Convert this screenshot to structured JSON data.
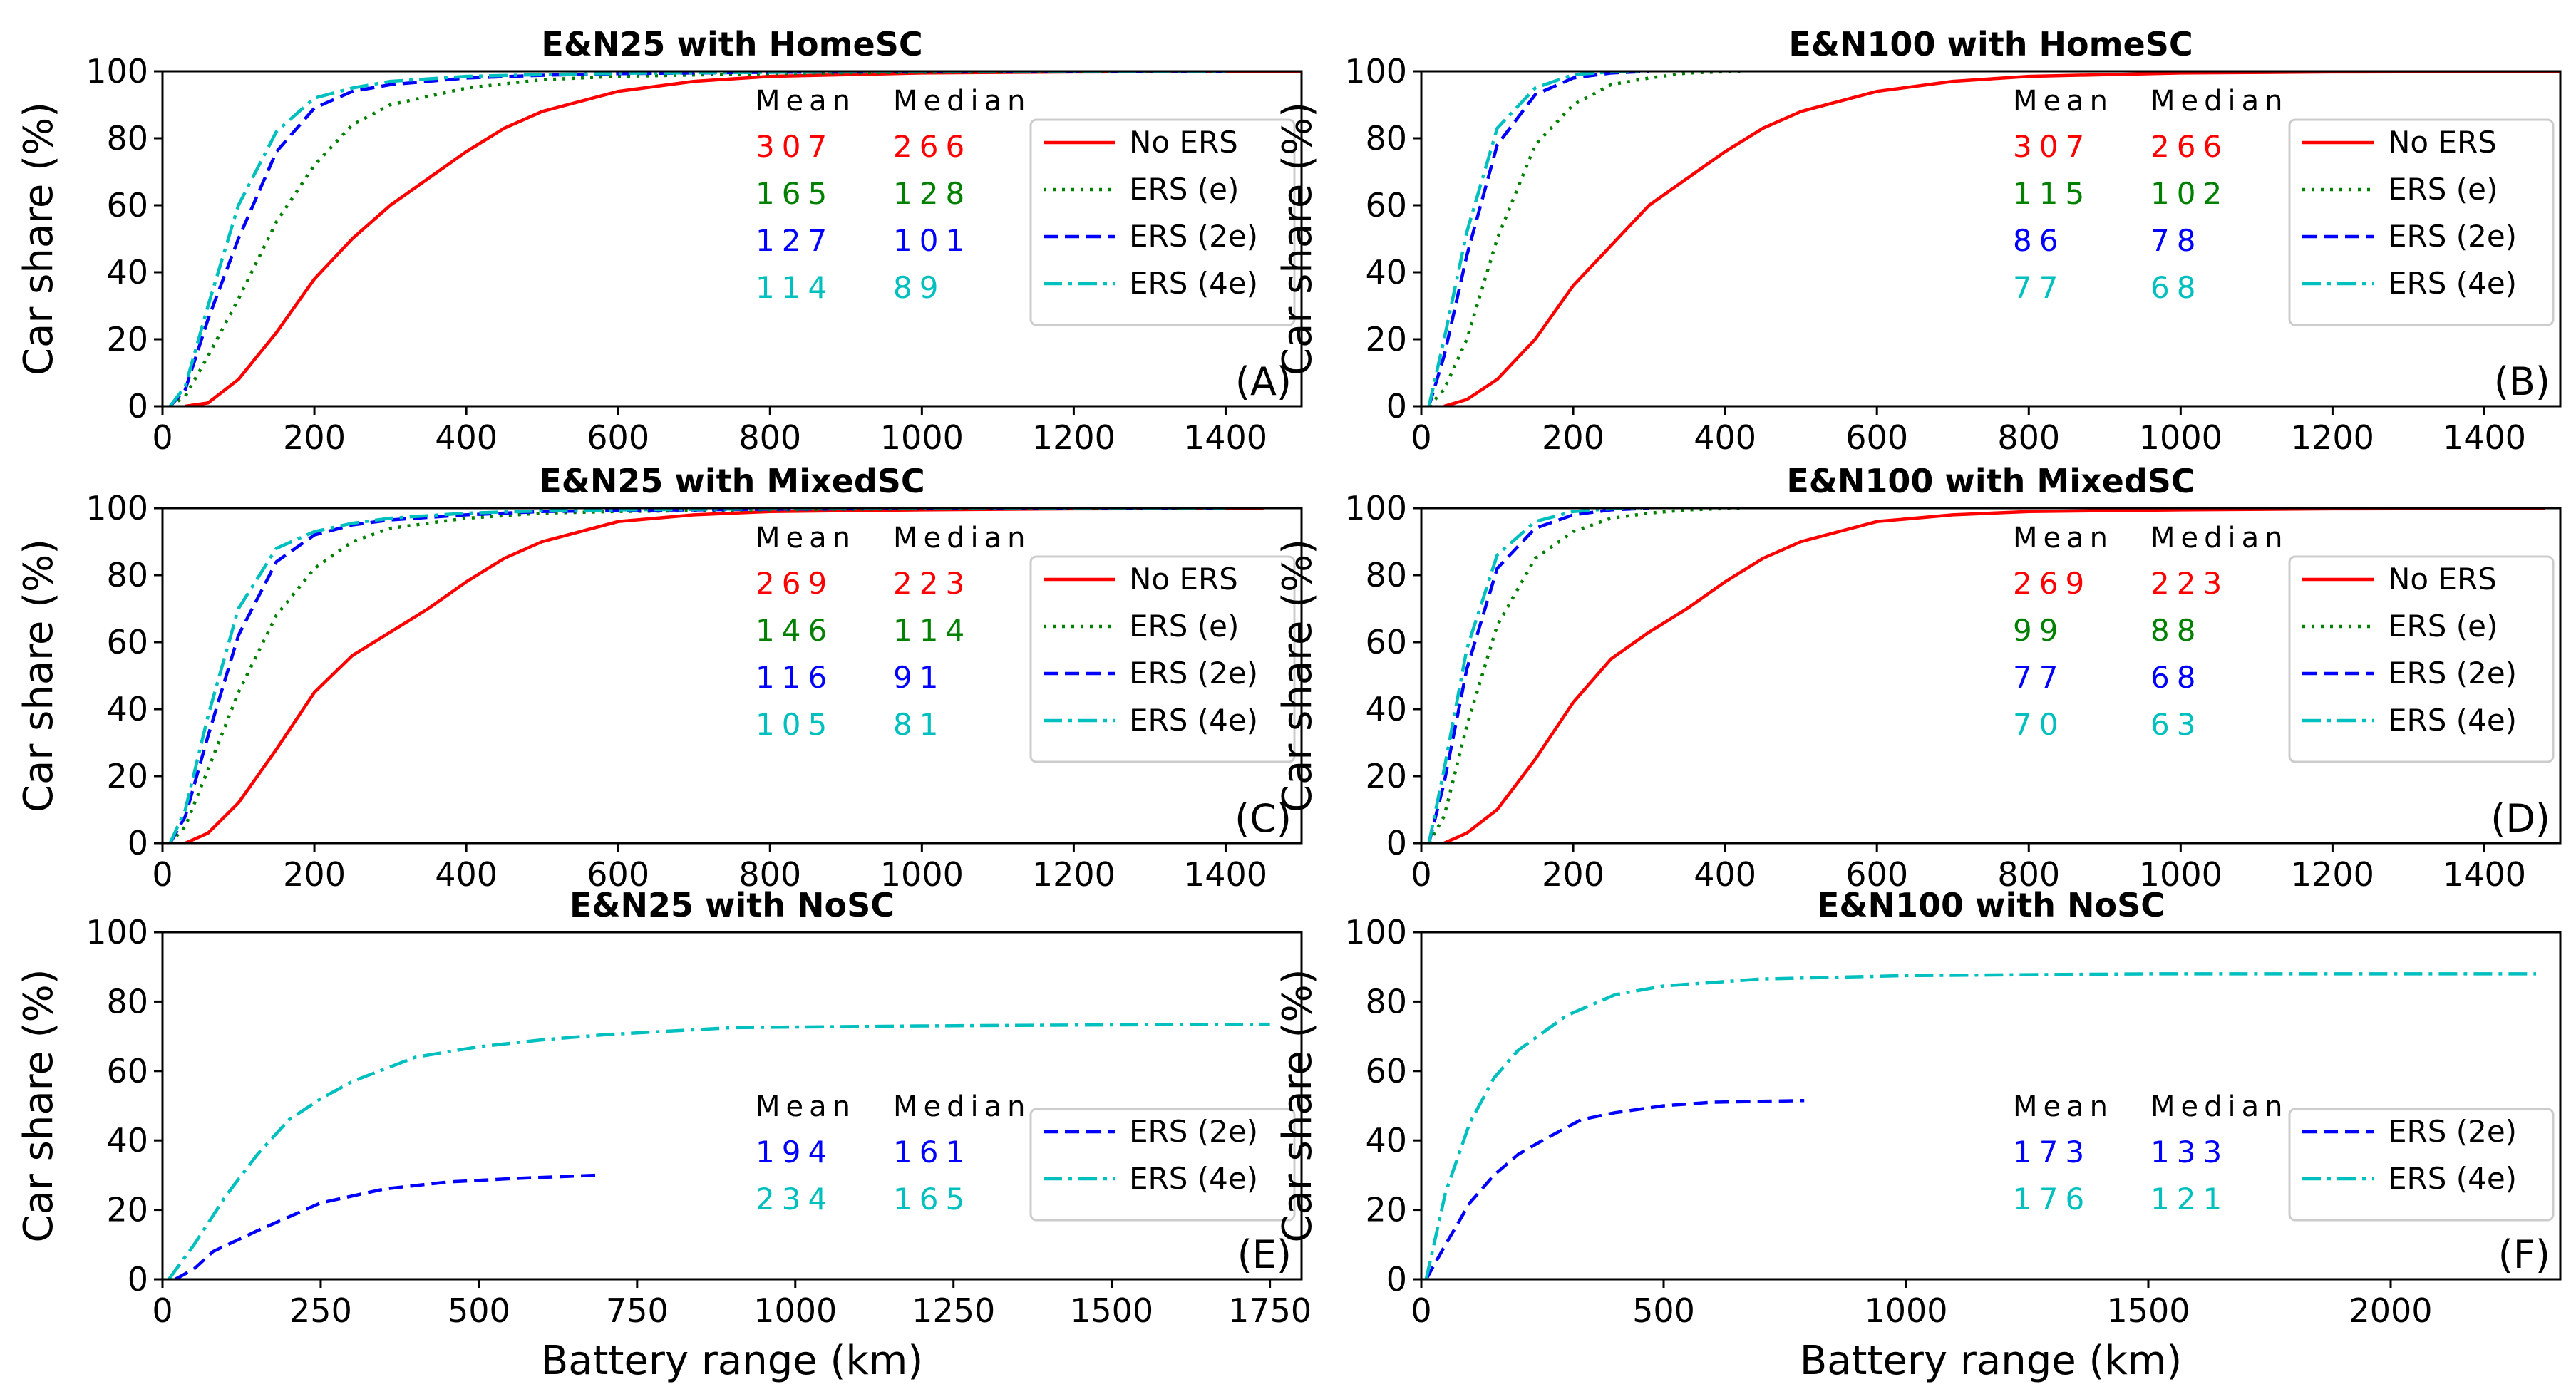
{
  "colors": {
    "no_ers": "#ff0000",
    "ers_e": "#008000",
    "ers_2e": "#0000ff",
    "ers_4e": "#00bfbf",
    "axis": "#000000"
  },
  "shared": {
    "ylabel": "Car share (%)",
    "xlabel": "Battery range (km)",
    "stats_headers": [
      "Mean",
      "Median"
    ]
  },
  "chart_data": [
    {
      "id": "A",
      "type": "line",
      "title": "E&N25 with HomeSC",
      "corner_label": "(A)",
      "xlim": [
        0,
        1500
      ],
      "ylim": [
        0,
        100
      ],
      "xticks": [
        0,
        200,
        400,
        600,
        800,
        1000,
        1200,
        1400
      ],
      "yticks": [
        0,
        20,
        40,
        60,
        80,
        100
      ],
      "legend": [
        "No ERS",
        "ERS (e)",
        "ERS (2e)",
        "ERS (4e)"
      ],
      "stats": [
        {
          "series": "No ERS",
          "mean": "307",
          "median": "266"
        },
        {
          "series": "ERS (e)",
          "mean": "165",
          "median": "128"
        },
        {
          "series": "ERS (2e)",
          "mean": "127",
          "median": "101"
        },
        {
          "series": "ERS (4e)",
          "mean": "114",
          "median": "89"
        }
      ],
      "series": [
        {
          "name": "No ERS",
          "style": "solid",
          "x": [
            30,
            60,
            100,
            150,
            200,
            250,
            300,
            350,
            400,
            450,
            500,
            600,
            700,
            800,
            1000,
            1200,
            1400,
            1500
          ],
          "y": [
            0,
            1,
            8,
            22,
            38,
            50,
            60,
            68,
            76,
            83,
            88,
            94,
            97,
            98.5,
            99.5,
            99.8,
            99.9,
            100
          ]
        },
        {
          "name": "ERS (e)",
          "style": "dotted",
          "x": [
            10,
            30,
            60,
            100,
            150,
            200,
            250,
            300,
            400,
            500,
            600,
            800,
            1000,
            1200,
            1400
          ],
          "y": [
            0,
            3,
            15,
            32,
            55,
            72,
            84,
            90,
            95,
            97.5,
            98.5,
            99.3,
            99.7,
            99.9,
            100
          ]
        },
        {
          "name": "ERS (2e)",
          "style": "dashed",
          "x": [
            10,
            30,
            60,
            100,
            150,
            200,
            250,
            300,
            400,
            500,
            600,
            800,
            1000,
            1200,
            1400
          ],
          "y": [
            0,
            5,
            26,
            50,
            76,
            89,
            94,
            96,
            98,
            98.8,
            99.3,
            99.7,
            99.9,
            100,
            100
          ]
        },
        {
          "name": "ERS (4e)",
          "style": "dashdot",
          "x": [
            10,
            30,
            60,
            100,
            150,
            200,
            250,
            300,
            400,
            500,
            600,
            800,
            1000,
            1200,
            1400
          ],
          "y": [
            0,
            6,
            30,
            60,
            82,
            92,
            95,
            97,
            98.5,
            99,
            99.4,
            99.7,
            99.9,
            100,
            100
          ]
        }
      ]
    },
    {
      "id": "B",
      "type": "line",
      "title": "E&N100 with HomeSC",
      "corner_label": "(B)",
      "xlim": [
        0,
        1500
      ],
      "ylim": [
        0,
        100
      ],
      "xticks": [
        0,
        200,
        400,
        600,
        800,
        1000,
        1200,
        1400
      ],
      "yticks": [
        0,
        20,
        40,
        60,
        80,
        100
      ],
      "legend": [
        "No ERS",
        "ERS (e)",
        "ERS (2e)",
        "ERS (4e)"
      ],
      "stats": [
        {
          "series": "No ERS",
          "mean": "307",
          "median": "266"
        },
        {
          "series": "ERS (e)",
          "mean": "115",
          "median": "102"
        },
        {
          "series": "ERS (2e)",
          "mean": "86",
          "median": "78"
        },
        {
          "series": "ERS (4e)",
          "mean": "77",
          "median": "68"
        }
      ],
      "series": [
        {
          "name": "No ERS",
          "style": "solid",
          "x": [
            30,
            60,
            100,
            150,
            200,
            250,
            300,
            350,
            400,
            450,
            500,
            600,
            700,
            800,
            1000,
            1200,
            1400,
            1500
          ],
          "y": [
            0,
            2,
            8,
            20,
            36,
            48,
            60,
            68,
            76,
            83,
            88,
            94,
            97,
            98.5,
            99.5,
            99.8,
            99.9,
            100
          ]
        },
        {
          "name": "ERS (e)",
          "style": "dotted",
          "x": [
            10,
            30,
            60,
            100,
            150,
            200,
            250,
            300,
            350,
            420
          ],
          "y": [
            0,
            5,
            20,
            50,
            78,
            90,
            96,
            98,
            99.5,
            100
          ]
        },
        {
          "name": "ERS (2e)",
          "style": "dashed",
          "x": [
            10,
            30,
            60,
            100,
            150,
            200,
            250,
            300
          ],
          "y": [
            0,
            15,
            45,
            78,
            93,
            98,
            99.5,
            100
          ]
        },
        {
          "name": "ERS (4e)",
          "style": "dashdot",
          "x": [
            10,
            30,
            60,
            100,
            150,
            200,
            250,
            290
          ],
          "y": [
            0,
            20,
            52,
            83,
            95,
            99,
            99.8,
            100
          ]
        }
      ]
    },
    {
      "id": "C",
      "type": "line",
      "title": "E&N25 with MixedSC",
      "corner_label": "(C)",
      "xlim": [
        0,
        1500
      ],
      "ylim": [
        0,
        100
      ],
      "xticks": [
        0,
        200,
        400,
        600,
        800,
        1000,
        1200,
        1400
      ],
      "yticks": [
        0,
        20,
        40,
        60,
        80,
        100
      ],
      "legend": [
        "No ERS",
        "ERS (e)",
        "ERS (2e)",
        "ERS (4e)"
      ],
      "stats": [
        {
          "series": "No ERS",
          "mean": "269",
          "median": "223"
        },
        {
          "series": "ERS (e)",
          "mean": "146",
          "median": "114"
        },
        {
          "series": "ERS (2e)",
          "mean": "116",
          "median": "91"
        },
        {
          "series": "ERS (4e)",
          "mean": "105",
          "median": "81"
        }
      ],
      "series": [
        {
          "name": "No ERS",
          "style": "solid",
          "x": [
            30,
            60,
            100,
            150,
            200,
            250,
            300,
            350,
            400,
            450,
            500,
            600,
            700,
            800,
            1000,
            1200,
            1400,
            1450
          ],
          "y": [
            0,
            3,
            12,
            28,
            45,
            56,
            63,
            70,
            78,
            85,
            90,
            96,
            98,
            99,
            99.5,
            99.8,
            99.9,
            100
          ]
        },
        {
          "name": "ERS (e)",
          "style": "dotted",
          "x": [
            10,
            30,
            60,
            100,
            150,
            200,
            250,
            300,
            400,
            500,
            600,
            800,
            1000,
            1200,
            1400
          ],
          "y": [
            0,
            5,
            22,
            45,
            68,
            82,
            90,
            94,
            97,
            98.5,
            99,
            99.5,
            99.8,
            99.9,
            100
          ]
        },
        {
          "name": "ERS (2e)",
          "style": "dashed",
          "x": [
            10,
            30,
            60,
            100,
            150,
            200,
            250,
            300,
            400,
            500,
            600,
            800,
            1000,
            1200,
            1400
          ],
          "y": [
            0,
            8,
            32,
            62,
            84,
            92,
            95,
            96.5,
            98,
            99,
            99.3,
            99.7,
            99.9,
            100,
            100
          ]
        },
        {
          "name": "ERS (4e)",
          "style": "dashdot",
          "x": [
            10,
            30,
            60,
            100,
            150,
            200,
            250,
            300,
            400,
            500,
            600,
            800,
            1000,
            1200,
            1400
          ],
          "y": [
            0,
            10,
            38,
            70,
            88,
            93,
            95.5,
            97,
            98.5,
            99.2,
            99.5,
            99.8,
            99.9,
            100,
            100
          ]
        }
      ]
    },
    {
      "id": "D",
      "type": "line",
      "title": "E&N100 with MixedSC",
      "corner_label": "(D)",
      "xlim": [
        0,
        1500
      ],
      "ylim": [
        0,
        100
      ],
      "xticks": [
        0,
        200,
        400,
        600,
        800,
        1000,
        1200,
        1400
      ],
      "yticks": [
        0,
        20,
        40,
        60,
        80,
        100
      ],
      "legend": [
        "No ERS",
        "ERS (e)",
        "ERS (2e)",
        "ERS (4e)"
      ],
      "stats": [
        {
          "series": "No ERS",
          "mean": "269",
          "median": "223"
        },
        {
          "series": "ERS (e)",
          "mean": "99",
          "median": "88"
        },
        {
          "series": "ERS (2e)",
          "mean": "77",
          "median": "68"
        },
        {
          "series": "ERS (4e)",
          "mean": "70",
          "median": "63"
        }
      ],
      "series": [
        {
          "name": "No ERS",
          "style": "solid",
          "x": [
            30,
            60,
            100,
            150,
            200,
            250,
            300,
            350,
            400,
            450,
            500,
            600,
            700,
            800,
            1000,
            1200,
            1400,
            1480
          ],
          "y": [
            0,
            3,
            10,
            25,
            42,
            55,
            63,
            70,
            78,
            85,
            90,
            96,
            98,
            99,
            99.5,
            99.8,
            99.9,
            100
          ]
        },
        {
          "name": "ERS (e)",
          "style": "dotted",
          "x": [
            10,
            30,
            60,
            100,
            150,
            200,
            250,
            300,
            350,
            420
          ],
          "y": [
            0,
            8,
            35,
            65,
            85,
            93,
            97,
            98.5,
            99.5,
            100
          ]
        },
        {
          "name": "ERS (2e)",
          "style": "dashed",
          "x": [
            10,
            30,
            60,
            100,
            150,
            200,
            250,
            300
          ],
          "y": [
            0,
            18,
            52,
            82,
            94,
            98,
            99.5,
            100
          ]
        },
        {
          "name": "ERS (4e)",
          "style": "dashdot",
          "x": [
            10,
            30,
            60,
            100,
            150,
            200,
            250,
            290
          ],
          "y": [
            0,
            22,
            58,
            86,
            96,
            99,
            99.8,
            100
          ]
        }
      ]
    },
    {
      "id": "E",
      "type": "line",
      "title": "E&N25 with NoSC",
      "corner_label": "(E)",
      "xlim": [
        0,
        1800
      ],
      "ylim": [
        0,
        100
      ],
      "xticks": [
        0,
        250,
        500,
        750,
        1000,
        1250,
        1500,
        1750
      ],
      "yticks": [
        0,
        20,
        40,
        60,
        80,
        100
      ],
      "legend": [
        "ERS (2e)",
        "ERS (4e)"
      ],
      "stats": [
        {
          "series": "ERS (2e)",
          "mean": "194",
          "median": "161"
        },
        {
          "series": "ERS (4e)",
          "mean": "234",
          "median": "165"
        }
      ],
      "series": [
        {
          "name": "ERS (2e)",
          "style": "dashed",
          "x": [
            20,
            50,
            80,
            150,
            250,
            350,
            450,
            550,
            690
          ],
          "y": [
            0,
            3,
            8,
            14,
            22,
            26,
            28,
            29,
            30
          ]
        },
        {
          "name": "ERS (4e)",
          "style": "dashdot",
          "x": [
            10,
            50,
            100,
            150,
            200,
            250,
            300,
            400,
            500,
            600,
            700,
            900,
            1200,
            1500,
            1750
          ],
          "y": [
            0,
            10,
            24,
            36,
            46,
            52,
            57,
            64,
            67,
            69,
            70.5,
            72.5,
            73,
            73.3,
            73.5
          ]
        }
      ]
    },
    {
      "id": "F",
      "type": "line",
      "title": "E&N100 with NoSC",
      "corner_label": "(F)",
      "xlim": [
        0,
        2350
      ],
      "ylim": [
        0,
        100
      ],
      "xticks": [
        0,
        500,
        1000,
        1500,
        2000
      ],
      "yticks": [
        0,
        20,
        40,
        60,
        80,
        100
      ],
      "legend": [
        "ERS (2e)",
        "ERS (4e)"
      ],
      "stats": [
        {
          "series": "ERS (2e)",
          "mean": "173",
          "median": "133"
        },
        {
          "series": "ERS (4e)",
          "mean": "176",
          "median": "121"
        }
      ],
      "series": [
        {
          "name": "ERS (2e)",
          "style": "dashed",
          "x": [
            10,
            50,
            100,
            150,
            200,
            250,
            330,
            400,
            500,
            600,
            790
          ],
          "y": [
            0,
            10,
            22,
            30,
            36,
            40,
            46,
            48,
            50,
            51,
            51.5
          ]
        },
        {
          "name": "ERS (4e)",
          "style": "dashdot",
          "x": [
            10,
            50,
            100,
            150,
            200,
            300,
            400,
            500,
            700,
            1000,
            1500,
            2000,
            2300
          ],
          "y": [
            0,
            25,
            45,
            58,
            66,
            76,
            82,
            84.5,
            86.5,
            87.5,
            88,
            88,
            88
          ]
        }
      ]
    }
  ]
}
